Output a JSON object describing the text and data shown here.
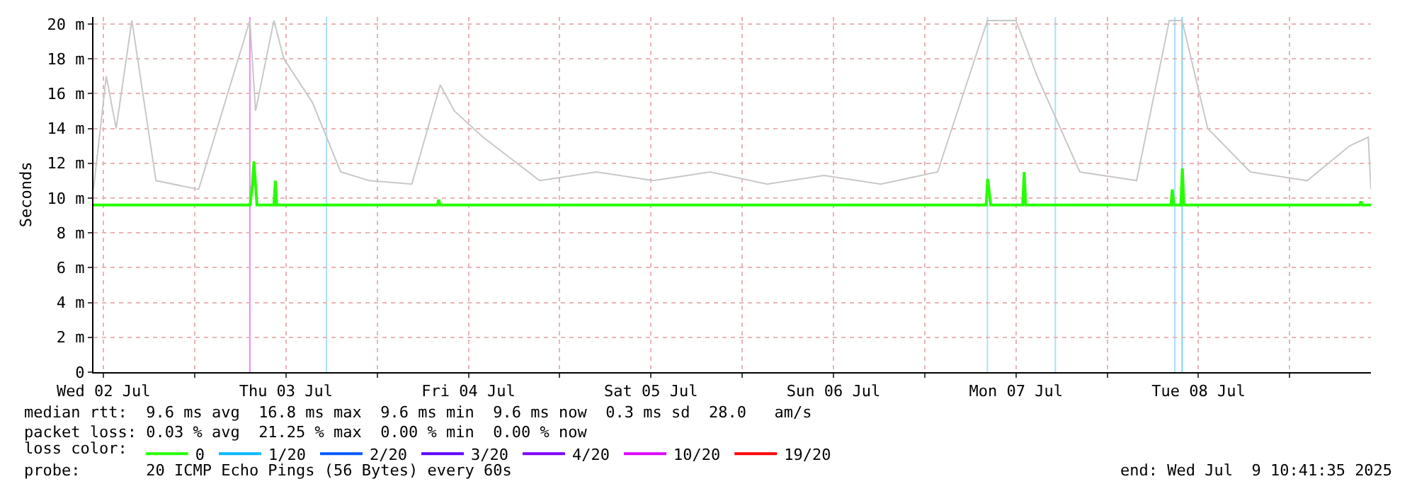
{
  "chart_data": {
    "type": "line",
    "ylabel": "Seconds",
    "legend_title": "loss color:",
    "legend": "bottom",
    "grid": true,
    "marker": "none",
    "xlim": [
      "2025-07-02T10:41",
      "2025-07-09T10:41"
    ],
    "xticks": [
      {
        "value": "2025-07-02T12:00",
        "label": "Wed 02 Jul"
      },
      {
        "value": "2025-07-03T00:00",
        "label": null
      },
      {
        "value": "2025-07-03T12:00",
        "label": "Thu 03 Jul"
      },
      {
        "value": "2025-07-04T00:00",
        "label": null
      },
      {
        "value": "2025-07-04T12:00",
        "label": "Fri 04 Jul"
      },
      {
        "value": "2025-07-05T00:00",
        "label": null
      },
      {
        "value": "2025-07-05T12:00",
        "label": "Sat 05 Jul"
      },
      {
        "value": "2025-07-06T00:00",
        "label": null
      },
      {
        "value": "2025-07-06T12:00",
        "label": "Sun 06 Jul"
      },
      {
        "value": "2025-07-07T00:00",
        "label": null
      },
      {
        "value": "2025-07-07T12:00",
        "label": "Mon 07 Jul"
      },
      {
        "value": "2025-07-08T00:00",
        "label": null
      },
      {
        "value": "2025-07-08T12:00",
        "label": "Tue 08 Jul"
      },
      {
        "value": "2025-07-09T00:00",
        "label": null
      }
    ],
    "ylim": [
      0,
      20.4
    ],
    "yticks": [
      0,
      {
        "value": 2,
        "label": "2 m"
      },
      {
        "value": 4,
        "label": "4 m"
      },
      {
        "value": 6,
        "label": "6 m"
      },
      {
        "value": 8,
        "label": "8 m"
      },
      {
        "value": 10,
        "label": "10 m"
      },
      {
        "value": 12,
        "label": "12 m"
      },
      {
        "value": 14,
        "label": "14 m"
      },
      {
        "value": 16,
        "label": "16 m"
      },
      {
        "value": 18,
        "label": "18 m"
      },
      {
        "value": 20,
        "label": "20 m"
      }
    ],
    "series": [
      {
        "color": "#c8c8c8",
        "x": [
          "2025-07-02T10:41",
          "2025-07-02T12:22",
          "2025-07-02T13:40",
          "2025-07-02T15:44",
          "2025-07-02T18:54",
          "2025-07-03T00:31",
          "2025-07-03T07:15",
          "2025-07-03T08:00",
          "2025-07-03T10:25",
          "2025-07-03T11:43",
          "2025-07-03T15:28",
          "2025-07-03T19:12",
          "2025-07-03T22:57",
          "2025-07-04T04:33",
          "2025-07-04T08:17",
          "2025-07-04T10:09",
          "2025-07-04T13:54",
          "2025-07-04T21:22",
          "2025-07-05T04:51",
          "2025-07-05T12:19",
          "2025-07-05T19:48",
          "2025-07-06T03:16",
          "2025-07-06T10:45",
          "2025-07-06T18:13",
          "2025-07-07T01:42",
          "2025-07-07T08:15",
          "2025-07-07T11:59",
          "2025-07-07T14:47",
          "2025-07-07T20:24",
          "2025-07-08T03:52",
          "2025-07-08T08:10",
          "2025-07-08T09:51",
          "2025-07-08T13:13",
          "2025-07-08T18:49",
          "2025-07-09T02:18",
          "2025-07-09T07:54",
          "2025-07-09T10:20",
          "2025-07-09T10:41"
        ],
        "values": [
          10.5,
          17,
          14,
          20.2,
          11,
          10.5,
          20.2,
          15,
          20.2,
          18,
          15.5,
          11.5,
          11,
          10.8,
          16.5,
          15,
          13.5,
          11,
          11.5,
          11,
          11.5,
          10.8,
          11.3,
          10.8,
          11.5,
          20.2,
          20.2,
          17,
          11.5,
          11,
          20.2,
          20.2,
          14,
          11.5,
          11,
          13,
          13.5,
          10.5
        ]
      },
      {
        "name": "0",
        "color": "#26ff00",
        "x": [
          "2025-07-02T10:41",
          "2025-07-03T07:17",
          "2025-07-03T07:36",
          "2025-07-03T07:47",
          "2025-07-03T08:11",
          "2025-07-03T10:25",
          "2025-07-03T10:36",
          "2025-07-03T10:47",
          "2025-07-04T07:54",
          "2025-07-04T08:05",
          "2025-07-04T08:16",
          "2025-07-07T08:05",
          "2025-07-07T08:17",
          "2025-07-07T08:41",
          "2025-07-07T12:53",
          "2025-07-07T13:05",
          "2025-07-07T13:17",
          "2025-07-08T08:23",
          "2025-07-08T08:34",
          "2025-07-08T08:45",
          "2025-07-08T09:41",
          "2025-07-08T09:53",
          "2025-07-08T10:05",
          "2025-07-09T09:11",
          "2025-07-09T09:22",
          "2025-07-09T09:33",
          "2025-07-09T10:41"
        ],
        "values": [
          9.6,
          9.6,
          10.8,
          12.1,
          9.6,
          9.6,
          11,
          9.6,
          9.6,
          9.9,
          9.6,
          9.6,
          11.1,
          9.6,
          9.6,
          11.5,
          9.6,
          9.6,
          10.5,
          9.6,
          9.6,
          11.7,
          9.6,
          9.6,
          9.8,
          9.6,
          9.6
        ]
      },
      {
        "name": "1/20",
        "color": "#00b8ff"
      },
      {
        "name": "2/20",
        "color": "#0059ff"
      },
      {
        "name": "3/20",
        "color": "#5e00ff"
      },
      {
        "name": "4/20",
        "color": "#7e00ff"
      },
      {
        "name": "10/20",
        "color": "#dd00ff"
      },
      {
        "name": "19/20",
        "color": "#ff0000"
      }
    ],
    "ref_lines": [
      {
        "axis": "x",
        "value": "2025-07-03T07:15",
        "color": "#ee88ee"
      },
      {
        "axis": "x",
        "value": "2025-07-03T17:20",
        "color": "#a8e0f8"
      },
      {
        "axis": "x",
        "value": "2025-07-07T08:15",
        "color": "#a8e0f8"
      },
      {
        "axis": "x",
        "value": "2025-07-07T17:11",
        "color": "#a8e0f8"
      },
      {
        "axis": "x",
        "value": "2025-07-08T08:54",
        "color": "#a8e0f8"
      },
      {
        "axis": "x",
        "value": "2025-07-08T09:51",
        "color": "#80d0f0"
      }
    ],
    "annotations": [
      "median rtt:  9.6 ms avg  16.8 ms max  9.6 ms min  9.6 ms now  0.3 ms sd  28.0   am/s",
      "packet loss: 0.03 % avg  21.25 % max  0.00 % min  0.00 % now",
      "probe:       20 ICMP Echo Pings (56 Bytes) every 60s",
      "end: Wed Jul  9 10:41:35 2025"
    ]
  }
}
